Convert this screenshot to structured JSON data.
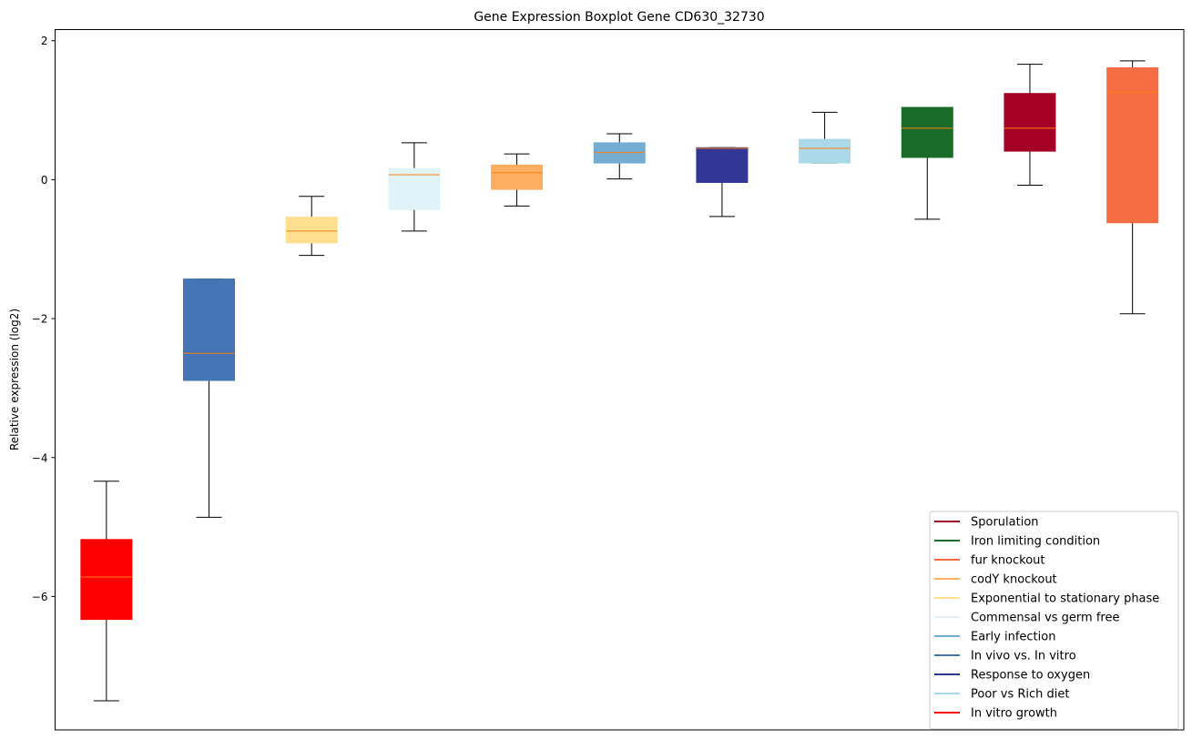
{
  "chart_data": {
    "type": "boxplot",
    "title": "Gene Expression Boxplot Gene CD630_32730",
    "xlabel": "",
    "ylabel": "Relative expression (log2)",
    "ylim": [
      -7.92,
      2.16
    ],
    "xlim": [
      0.5,
      11.5
    ],
    "yticks": [
      2,
      0,
      -2,
      -4,
      -6
    ],
    "ytick_labels": [
      "2",
      "0",
      "−2",
      "−4",
      "−6"
    ],
    "grid": false,
    "legend_position": "lower-right",
    "median_color": "#ff7f0e",
    "boxes": [
      {
        "name": "In vitro growth",
        "color": "#ff0000",
        "whislo": -7.5,
        "q1": -6.33,
        "med": -5.72,
        "q3": -5.18,
        "whishi": -4.34
      },
      {
        "name": "In vivo vs. In vitro",
        "color": "#4575b4",
        "whislo": -4.86,
        "q1": -2.89,
        "med": -2.5,
        "q3": -1.43,
        "whishi": -1.43
      },
      {
        "name": "Exponential to stationary phase",
        "color": "#fee090",
        "whislo": -1.09,
        "q1": -0.91,
        "med": -0.74,
        "q3": -0.54,
        "whishi": -0.24
      },
      {
        "name": "Commensal vs germ free",
        "color": "#e0f3f8",
        "whislo": -0.74,
        "q1": -0.43,
        "med": 0.07,
        "q3": 0.16,
        "whishi": 0.53
      },
      {
        "name": "codY knockout",
        "color": "#fdae61",
        "whislo": -0.38,
        "q1": -0.14,
        "med": 0.1,
        "q3": 0.21,
        "whishi": 0.37
      },
      {
        "name": "Early infection",
        "color": "#74add1",
        "whislo": 0.01,
        "q1": 0.24,
        "med": 0.39,
        "q3": 0.53,
        "whishi": 0.66
      },
      {
        "name": "Response to oxygen",
        "color": "#313695",
        "whislo": -0.53,
        "q1": -0.04,
        "med": 0.45,
        "q3": 0.46,
        "whishi": 0.46
      },
      {
        "name": "Poor vs Rich diet",
        "color": "#abd9e9",
        "whislo": 0.24,
        "q1": 0.24,
        "med": 0.45,
        "q3": 0.58,
        "whishi": 0.97
      },
      {
        "name": "Iron limiting condition",
        "color": "#1a6b2a",
        "whislo": -0.57,
        "q1": 0.32,
        "med": 0.74,
        "q3": 1.04,
        "whishi": 1.04
      },
      {
        "name": "Sporulation",
        "color": "#a50026",
        "whislo": -0.08,
        "q1": 0.41,
        "med": 0.74,
        "q3": 1.24,
        "whishi": 1.66
      },
      {
        "name": "fur knockout",
        "color": "#f46d43",
        "whislo": -1.93,
        "q1": -0.62,
        "med": 1.26,
        "q3": 1.61,
        "whishi": 1.71
      }
    ],
    "legend": [
      {
        "label": "Sporulation",
        "color": "#a50026"
      },
      {
        "label": "Iron limiting condition",
        "color": "#1a6b2a"
      },
      {
        "label": "fur knockout",
        "color": "#f46d43"
      },
      {
        "label": "codY knockout",
        "color": "#fdae61"
      },
      {
        "label": "Exponential to stationary phase",
        "color": "#fee090"
      },
      {
        "label": "Commensal vs germ free",
        "color": "#e0f3f8"
      },
      {
        "label": "Early infection",
        "color": "#74add1"
      },
      {
        "label": "In vivo vs. In vitro",
        "color": "#4575b4"
      },
      {
        "label": "Response to oxygen",
        "color": "#313695"
      },
      {
        "label": "Poor vs Rich diet",
        "color": "#abd9e9"
      },
      {
        "label": "In vitro growth",
        "color": "#ff0000"
      }
    ]
  }
}
